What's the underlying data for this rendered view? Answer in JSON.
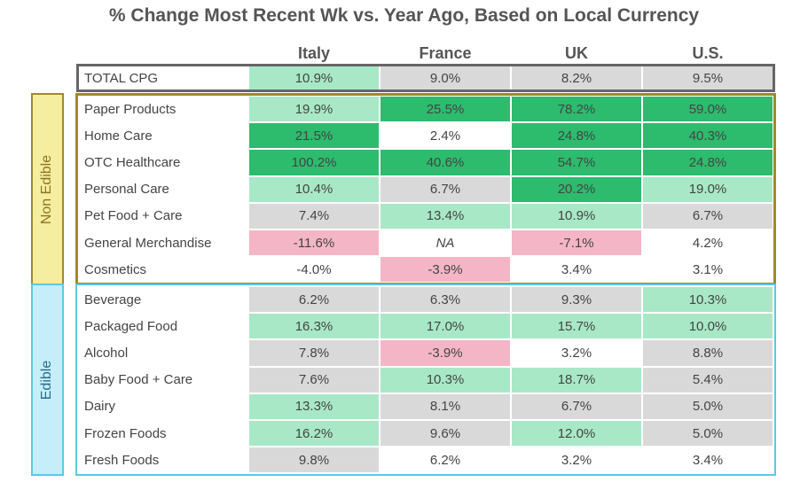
{
  "title": "% Change Most Recent Wk vs. Year Ago, Based on Local Currency",
  "columns": [
    "Italy",
    "France",
    "UK",
    "U.S."
  ],
  "total": {
    "label": "TOTAL CPG",
    "values": [
      "10.9%",
      "9.0%",
      "8.2%",
      "9.5%"
    ],
    "fills": [
      "#a8e8c6",
      "#d9d9d9",
      "#d9d9d9",
      "#d9d9d9"
    ]
  },
  "groups": [
    {
      "label": "Non Edible",
      "rows": [
        {
          "label": "Paper Products",
          "values": [
            "19.9%",
            "25.5%",
            "78.2%",
            "59.0%"
          ],
          "fills": [
            "#a8e8c6",
            "#2dbb6e",
            "#2dbb6e",
            "#2dbb6e"
          ]
        },
        {
          "label": "Home Care",
          "values": [
            "21.5%",
            "2.4%",
            "24.8%",
            "40.3%"
          ],
          "fills": [
            "#2dbb6e",
            "#ffffff",
            "#2dbb6e",
            "#2dbb6e"
          ]
        },
        {
          "label": "OTC Healthcare",
          "values": [
            "100.2%",
            "40.6%",
            "54.7%",
            "24.8%"
          ],
          "fills": [
            "#2dbb6e",
            "#2dbb6e",
            "#2dbb6e",
            "#2dbb6e"
          ]
        },
        {
          "label": "Personal Care",
          "values": [
            "10.4%",
            "6.7%",
            "20.2%",
            "19.0%"
          ],
          "fills": [
            "#a8e8c6",
            "#d9d9d9",
            "#2dbb6e",
            "#a8e8c6"
          ]
        },
        {
          "label": "Pet Food + Care",
          "values": [
            "7.4%",
            "13.4%",
            "10.9%",
            "6.7%"
          ],
          "fills": [
            "#d9d9d9",
            "#a8e8c6",
            "#a8e8c6",
            "#d9d9d9"
          ]
        },
        {
          "label": "General Merchandise",
          "values": [
            "-11.6%",
            "NA",
            "-7.1%",
            "4.2%"
          ],
          "fills": [
            "#f4b6c6",
            "#ffffff",
            "#f4b6c6",
            "#ffffff"
          ]
        },
        {
          "label": "Cosmetics",
          "values": [
            "-4.0%",
            "-3.9%",
            "3.4%",
            "3.1%"
          ],
          "fills": [
            "#ffffff",
            "#f4b6c6",
            "#ffffff",
            "#ffffff"
          ]
        }
      ]
    },
    {
      "label": "Edible",
      "rows": [
        {
          "label": "Beverage",
          "values": [
            "6.2%",
            "6.3%",
            "9.3%",
            "10.3%"
          ],
          "fills": [
            "#d9d9d9",
            "#d9d9d9",
            "#d9d9d9",
            "#a8e8c6"
          ]
        },
        {
          "label": "Packaged Food",
          "values": [
            "16.3%",
            "17.0%",
            "15.7%",
            "10.0%"
          ],
          "fills": [
            "#a8e8c6",
            "#a8e8c6",
            "#a8e8c6",
            "#a8e8c6"
          ]
        },
        {
          "label": "Alcohol",
          "values": [
            "7.8%",
            "-3.9%",
            "3.2%",
            "8.8%"
          ],
          "fills": [
            "#d9d9d9",
            "#f4b6c6",
            "#ffffff",
            "#d9d9d9"
          ]
        },
        {
          "label": "Baby Food + Care",
          "values": [
            "7.6%",
            "10.3%",
            "18.7%",
            "5.4%"
          ],
          "fills": [
            "#d9d9d9",
            "#a8e8c6",
            "#a8e8c6",
            "#d9d9d9"
          ]
        },
        {
          "label": "Dairy",
          "values": [
            "13.3%",
            "8.1%",
            "6.7%",
            "5.0%"
          ],
          "fills": [
            "#a8e8c6",
            "#d9d9d9",
            "#d9d9d9",
            "#d9d9d9"
          ]
        },
        {
          "label": "Frozen Foods",
          "values": [
            "16.2%",
            "9.6%",
            "12.0%",
            "5.0%"
          ],
          "fills": [
            "#a8e8c6",
            "#d9d9d9",
            "#a8e8c6",
            "#d9d9d9"
          ]
        },
        {
          "label": "Fresh Foods",
          "values": [
            "9.8%",
            "6.2%",
            "3.2%",
            "3.4%"
          ],
          "fills": [
            "#d9d9d9",
            "#ffffff",
            "#ffffff",
            "#ffffff"
          ]
        }
      ]
    }
  ]
}
